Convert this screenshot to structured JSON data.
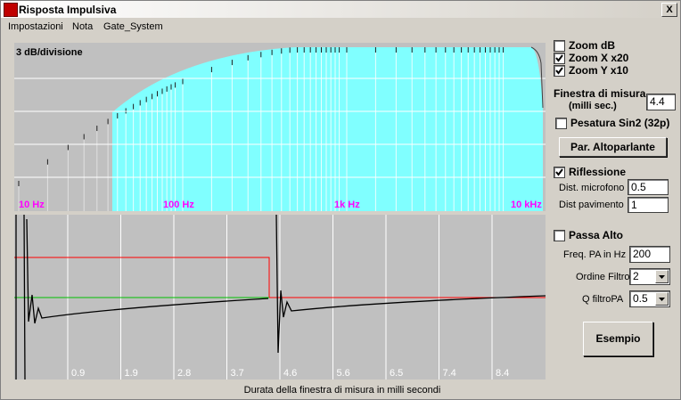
{
  "window": {
    "title": "Risposta Impulsiva",
    "close": "X"
  },
  "menu": {
    "items": [
      "Impostazioni",
      "Nota",
      "Gate_System"
    ]
  },
  "top_chart": {
    "scale_label": "3 dB/divisione",
    "freq_labels": [
      "10 Hz",
      "100 Hz",
      "1k Hz",
      "10 kHz"
    ]
  },
  "bottom_chart": {
    "tick_labels": [
      "0.9",
      "1.9",
      "2.8",
      "3.7",
      "4.6",
      "5.6",
      "6.5",
      "7.4",
      "8.4"
    ],
    "caption": "Durata della finestra di misura in milli secondi"
  },
  "panel": {
    "zoom_db": "Zoom dB",
    "zoom_x": "Zoom X x20",
    "zoom_y": "Zoom Y x10",
    "window_label": "Finestra di misura",
    "window_unit": "(milli sec.)",
    "window_value": "4.4",
    "sin2": "Pesatura Sin2 (32p)",
    "speaker_button": "Par. Altoparlante",
    "reflection": "Riflessione",
    "mic_dist_label": "Dist. microfono",
    "mic_dist_value": "0.5",
    "floor_dist_label": "Dist pavimento",
    "floor_dist_value": "1",
    "highpass": "Passa Alto",
    "hp_freq_label": "Freq. PA in Hz",
    "hp_freq_value": "200",
    "order_label": "Ordine Filtro",
    "order_value": "2",
    "q_label": "Q filtroPA",
    "q_value": "0.5",
    "example_button": "Esempio"
  }
}
